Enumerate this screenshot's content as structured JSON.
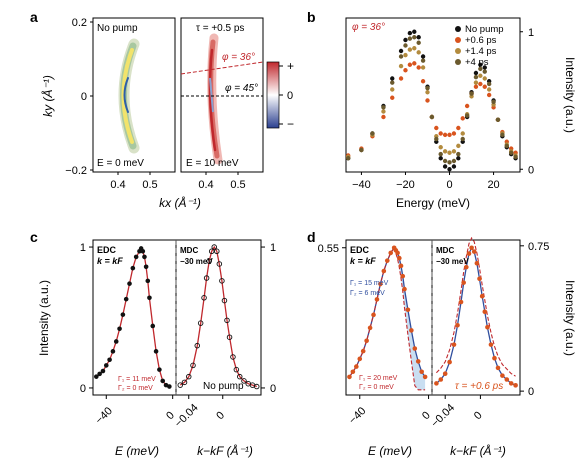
{
  "figure": {
    "panel_letters": [
      "a",
      "b",
      "c",
      "d"
    ]
  },
  "chart_data": [
    {
      "id": "a_left",
      "type": "heatmap",
      "inset_text_top": "No pump",
      "inset_text_bottom": "E = 0 meV",
      "xlabel": "kx (Å⁻¹)",
      "ylabel": "ky (Å⁻¹)",
      "xlim": [
        0.33,
        0.55
      ],
      "ylim": [
        -0.2,
        0.2
      ],
      "xticks": [
        0.4,
        0.5
      ],
      "yticks": [
        -0.2,
        0,
        0.2
      ],
      "ytick_labels": [
        "−0.2",
        "0",
        "0.2"
      ],
      "colors": [
        "#a8c8a0",
        "#f2e36b",
        "#2e5fa8"
      ]
    },
    {
      "id": "a_right",
      "type": "heatmap",
      "inset_text_top": "τ = +0.5 ps",
      "inset_text_bottom": "E = 10 meV",
      "line_labels": [
        "φ = 36°",
        "φ = 45°"
      ],
      "colorbar_labels": [
        "+",
        "0",
        "−"
      ],
      "xlim": [
        0.33,
        0.55
      ],
      "xticks": [
        0.4,
        0.5
      ],
      "colors": [
        "#c0282d",
        "#ffffff",
        "#2a3f8f"
      ]
    },
    {
      "id": "b",
      "type": "scatter",
      "annotation": "φ = 36°",
      "xlabel": "Energy (meV)",
      "ylabel": "Intensity (a.u.)",
      "xlim": [
        -47,
        32
      ],
      "ylim": [
        -0.02,
        1.1
      ],
      "xticks": [
        -40,
        -20,
        0,
        20
      ],
      "yticks": [
        0,
        1
      ],
      "series": [
        {
          "name": "No pump",
          "color": "#111111",
          "x": [
            -46,
            -40,
            -35,
            -30,
            -26,
            -22,
            -20,
            -18,
            -16,
            -14,
            -12,
            -10,
            -8,
            -6,
            -4,
            -2,
            0,
            2,
            4,
            6,
            8,
            10,
            12,
            14,
            16,
            18,
            20,
            22,
            24,
            26,
            28,
            30
          ],
          "y": [
            0.08,
            0.14,
            0.26,
            0.46,
            0.66,
            0.86,
            0.94,
            0.99,
            1.0,
            0.96,
            0.82,
            0.6,
            0.38,
            0.2,
            0.08,
            0.02,
            0.0,
            0.02,
            0.08,
            0.2,
            0.38,
            0.56,
            0.7,
            0.76,
            0.74,
            0.64,
            0.5,
            0.36,
            0.24,
            0.16,
            0.11,
            0.08
          ]
        },
        {
          "name": "+0.6 ps",
          "color": "#d9541e",
          "x": [
            -46,
            -40,
            -35,
            -30,
            -26,
            -22,
            -20,
            -18,
            -16,
            -14,
            -12,
            -10,
            -8,
            -6,
            -4,
            -2,
            0,
            2,
            4,
            6,
            8,
            10,
            12,
            14,
            16,
            18,
            20,
            22,
            24,
            26,
            28,
            30
          ],
          "y": [
            0.1,
            0.15,
            0.24,
            0.38,
            0.52,
            0.66,
            0.72,
            0.76,
            0.77,
            0.74,
            0.64,
            0.5,
            0.38,
            0.3,
            0.26,
            0.25,
            0.25,
            0.26,
            0.3,
            0.37,
            0.46,
            0.55,
            0.6,
            0.62,
            0.6,
            0.54,
            0.45,
            0.36,
            0.27,
            0.2,
            0.15,
            0.12
          ]
        },
        {
          "name": "+1.4 ps",
          "color": "#b38b3e",
          "x": [
            -46,
            -40,
            -35,
            -30,
            -26,
            -22,
            -20,
            -18,
            -16,
            -14,
            -12,
            -10,
            -8,
            -6,
            -4,
            -2,
            0,
            2,
            4,
            6,
            8,
            10,
            12,
            14,
            16,
            18,
            20,
            22,
            24,
            26,
            28,
            30
          ],
          "y": [
            0.09,
            0.14,
            0.25,
            0.42,
            0.58,
            0.75,
            0.83,
            0.87,
            0.88,
            0.85,
            0.74,
            0.56,
            0.38,
            0.24,
            0.16,
            0.13,
            0.12,
            0.13,
            0.17,
            0.26,
            0.4,
            0.53,
            0.63,
            0.68,
            0.66,
            0.58,
            0.47,
            0.36,
            0.26,
            0.18,
            0.13,
            0.1
          ]
        },
        {
          "name": "+4 ps",
          "color": "#6b5a2e",
          "x": [
            -46,
            -40,
            -35,
            -30,
            -26,
            -22,
            -20,
            -18,
            -16,
            -14,
            -12,
            -10,
            -8,
            -6,
            -4,
            -2,
            0,
            2,
            4,
            6,
            8,
            10,
            12,
            14,
            16,
            18,
            20,
            22,
            24,
            26,
            28,
            30
          ],
          "y": [
            0.08,
            0.14,
            0.26,
            0.45,
            0.63,
            0.82,
            0.9,
            0.95,
            0.96,
            0.92,
            0.79,
            0.59,
            0.38,
            0.22,
            0.11,
            0.06,
            0.05,
            0.06,
            0.11,
            0.22,
            0.39,
            0.55,
            0.67,
            0.73,
            0.71,
            0.62,
            0.49,
            0.36,
            0.25,
            0.17,
            0.12,
            0.09
          ]
        }
      ]
    },
    {
      "id": "c",
      "type": "scatter",
      "ylabel": "Intensity (a.u.)",
      "edc": {
        "title1": "EDC",
        "title2": "k = kF",
        "xlabel": "E (meV)",
        "xlim": [
          -48,
          2
        ],
        "xticks": [
          -40,
          0
        ],
        "ylim": [
          -0.05,
          1.05
        ],
        "yticks": [
          0,
          1
        ],
        "gamma_text": [
          "Γ₁ = 11 meV",
          "Γ₂ = 0 meV"
        ],
        "data_color": "#111111",
        "fit_color": "#c0282d",
        "x": [
          -46,
          -44,
          -42,
          -40,
          -38,
          -36,
          -34,
          -32,
          -30,
          -28,
          -26,
          -24,
          -22,
          -20,
          -19,
          -18,
          -17,
          -16,
          -15,
          -14,
          -12,
          -10,
          -8,
          -6,
          -4,
          -2
        ],
        "y": [
          0.08,
          0.1,
          0.12,
          0.16,
          0.2,
          0.26,
          0.33,
          0.42,
          0.52,
          0.63,
          0.74,
          0.85,
          0.93,
          0.97,
          0.99,
          0.97,
          0.93,
          0.86,
          0.76,
          0.64,
          0.44,
          0.26,
          0.13,
          0.05,
          0.02,
          0.01
        ]
      },
      "mdc": {
        "title1": "MDC",
        "title2": "−30 meV",
        "footer": "No pump",
        "xlabel": "k−kF (Å⁻¹)",
        "xlim": [
          -0.055,
          0.045
        ],
        "xticks": [
          -0.04,
          0
        ],
        "xtick_labels": [
          "−0.04",
          "0"
        ],
        "ylim": [
          -0.05,
          1.05
        ],
        "yticks": [
          0,
          1
        ],
        "data_color": "#111111",
        "fit_color": "#c0282d",
        "x": [
          -0.05,
          -0.045,
          -0.04,
          -0.035,
          -0.03,
          -0.026,
          -0.022,
          -0.019,
          -0.016,
          -0.013,
          -0.01,
          -0.007,
          -0.004,
          -0.001,
          0.002,
          0.005,
          0.008,
          0.012,
          0.016,
          0.02,
          0.025,
          0.03,
          0.035,
          0.04
        ],
        "y": [
          0.02,
          0.04,
          0.08,
          0.16,
          0.3,
          0.46,
          0.64,
          0.78,
          0.9,
          0.97,
          1.0,
          0.97,
          0.88,
          0.76,
          0.62,
          0.48,
          0.36,
          0.22,
          0.13,
          0.08,
          0.05,
          0.03,
          0.02,
          0.01
        ]
      }
    },
    {
      "id": "d",
      "type": "scatter",
      "ylabel": "Intensity (a.u.)",
      "edc": {
        "title1": "EDC",
        "title2": "k = kF",
        "xlabel": "E (meV)",
        "xlim": [
          -48,
          2
        ],
        "xticks": [
          -40,
          0
        ],
        "ylim": [
          -0.02,
          0.58
        ],
        "yticks": [
          0.55
        ],
        "ytick_labels": [
          "0.55"
        ],
        "gamma_blue": [
          "Γ₁ = 15 meV",
          "Γ₂ = 6 meV"
        ],
        "gamma_red": [
          "Γ₁ = 20 meV",
          "Γ₂ = 0 meV"
        ],
        "data_color": "#d9541e",
        "fit_blue_color": "#2f4e9e",
        "fit_red_color": "#c0282d",
        "shade_color": "#bcd6ee",
        "x": [
          -46,
          -44,
          -42,
          -40,
          -38,
          -36,
          -34,
          -32,
          -30,
          -28,
          -26,
          -24,
          -22,
          -20,
          -19,
          -18,
          -17,
          -16,
          -15,
          -14,
          -12,
          -10,
          -8,
          -6,
          -4,
          -2
        ],
        "y": [
          0.05,
          0.07,
          0.09,
          0.12,
          0.15,
          0.19,
          0.24,
          0.29,
          0.35,
          0.41,
          0.46,
          0.5,
          0.53,
          0.55,
          0.54,
          0.53,
          0.51,
          0.48,
          0.44,
          0.39,
          0.31,
          0.23,
          0.16,
          0.11,
          0.07,
          0.05
        ]
      },
      "mdc": {
        "title1": "MDC",
        "title2": "−30 meV",
        "footer": "τ = +0.6 ps",
        "xlabel": "k−kF (Å⁻¹)",
        "xlim": [
          -0.055,
          0.045
        ],
        "xticks": [
          -0.04,
          0
        ],
        "xtick_labels": [
          "−0.04",
          "0"
        ],
        "ylim": [
          -0.02,
          0.78
        ],
        "yticks": [
          0,
          0.75
        ],
        "ytick_labels": [
          "0",
          "0.75"
        ],
        "data_color": "#d9541e",
        "x": [
          -0.05,
          -0.045,
          -0.04,
          -0.035,
          -0.03,
          -0.026,
          -0.022,
          -0.019,
          -0.016,
          -0.013,
          -0.01,
          -0.007,
          -0.004,
          -0.001,
          0.002,
          0.005,
          0.008,
          0.012,
          0.016,
          0.02,
          0.025,
          0.03,
          0.035,
          0.04
        ],
        "y": [
          0.04,
          0.06,
          0.09,
          0.15,
          0.24,
          0.34,
          0.46,
          0.56,
          0.64,
          0.71,
          0.74,
          0.72,
          0.66,
          0.58,
          0.49,
          0.41,
          0.33,
          0.24,
          0.17,
          0.12,
          0.08,
          0.06,
          0.04,
          0.03
        ]
      }
    }
  ]
}
